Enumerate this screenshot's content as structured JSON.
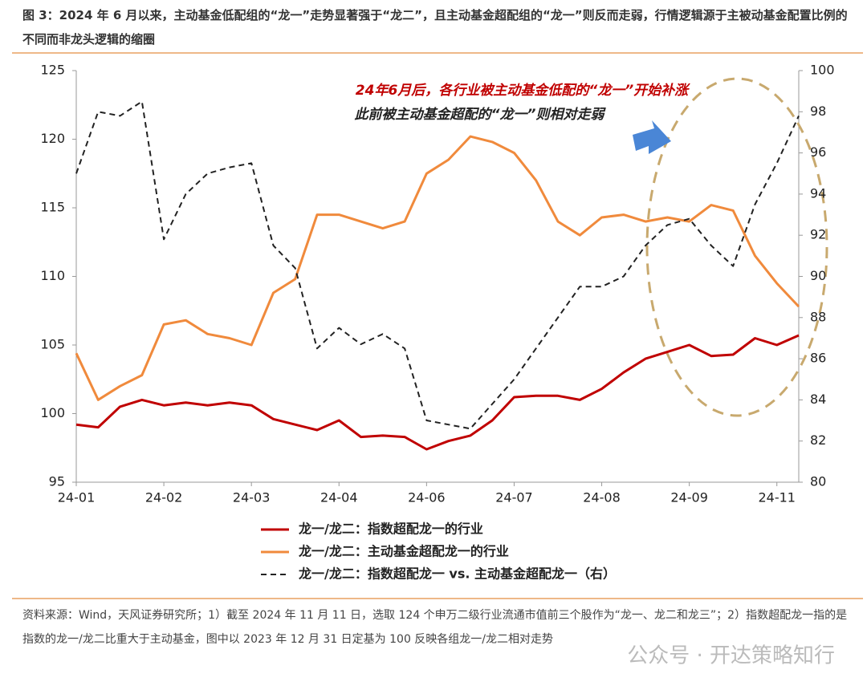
{
  "chart_data": {
    "type": "line",
    "title": "图 3：2024 年 6 月以来，主动基金低配组的“龙一”走势显著强于“龙二”，且主动基金超配组的“龙一”则反而走弱，行情逻辑源于主被动基金配置比例的不同而非龙头逻辑的缩圈",
    "annotations": [
      "24年6月后，各行业被主动基金低配的“龙一”开始补涨",
      "此前被主动基金超配的“龙一”则相对走弱"
    ],
    "source": "资料来源：Wind，天风证券研究所；1）截至 2024 年 11 月 11 日，选取 124 个申万二级行业流通市值前三个股作为“龙一、龙二和龙三”；2）指数超配龙一指的是指数的龙一/龙二比重大于主动基金，图中以 2023 年 12 月 31 日定基为 100 反映各组龙一/龙二相对走势",
    "watermark": "公众号 · 开达策略知行",
    "categories": [
      "24-01",
      null,
      null,
      null,
      "24-02",
      null,
      null,
      null,
      "24-03",
      null,
      null,
      null,
      "24-04",
      null,
      null,
      null,
      "24-06",
      null,
      null,
      null,
      "24-07",
      null,
      null,
      null,
      "24-08",
      null,
      null,
      null,
      "24-09",
      null,
      null,
      null,
      "24-11",
      null
    ],
    "ylim": [
      95,
      125
    ],
    "yticks": [
      95,
      100,
      105,
      110,
      115,
      120,
      125
    ],
    "y2lim": [
      80,
      100
    ],
    "y2ticks": [
      80,
      82,
      84,
      86,
      88,
      90,
      92,
      94,
      96,
      98,
      100
    ],
    "series": [
      {
        "name": "龙一/龙二：指数超配龙一的行业",
        "color": "#c00000",
        "dashed": false,
        "values": [
          99.2,
          99.0,
          100.5,
          101.0,
          100.6,
          100.8,
          100.6,
          100.8,
          100.6,
          99.6,
          99.2,
          98.8,
          99.5,
          98.3,
          98.4,
          98.3,
          97.4,
          98.0,
          98.4,
          99.5,
          101.2,
          101.3,
          101.3,
          101.0,
          101.8,
          103.0,
          104.0,
          104.5,
          105.0,
          104.2,
          104.3,
          105.5,
          105.0,
          105.7
        ]
      },
      {
        "name": "龙一/龙二：主动基金超配龙一的行业",
        "color": "#f08a3c",
        "dashed": false,
        "values": [
          104.4,
          101.0,
          102.0,
          102.8,
          106.5,
          106.8,
          105.8,
          105.5,
          105.0,
          108.8,
          109.8,
          114.5,
          114.5,
          114.0,
          113.5,
          114.0,
          117.5,
          118.5,
          120.2,
          119.8,
          119.0,
          117.0,
          114.0,
          113.0,
          114.3,
          114.5,
          114.0,
          114.3,
          114.0,
          115.2,
          114.8,
          111.5,
          109.5,
          107.8
        ]
      },
      {
        "name": "龙一/龙二：指数超配龙一 vs. 主动基金超配龙一（右）",
        "color": "#222222",
        "dashed": true,
        "axis": "y2",
        "values": [
          95.0,
          98.0,
          97.8,
          98.5,
          91.8,
          94.0,
          95.0,
          95.3,
          95.5,
          91.5,
          90.4,
          86.5,
          87.5,
          86.7,
          87.2,
          86.5,
          83.0,
          82.8,
          82.6,
          83.8,
          85.0,
          86.5,
          88.0,
          89.5,
          89.5,
          90.0,
          91.5,
          92.5,
          92.8,
          91.5,
          90.5,
          93.5,
          95.5,
          97.8
        ]
      }
    ]
  }
}
